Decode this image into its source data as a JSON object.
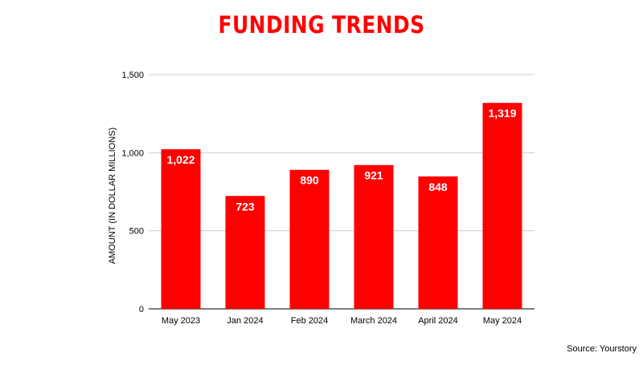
{
  "chart_data": {
    "type": "bar",
    "title": "FUNDING TRENDS",
    "ylabel": "AMOUNT (IN DOLLAR MILLIONS)",
    "xlabel": "",
    "categories": [
      "May 2023",
      "Jan 2024",
      "Feb 2024",
      "March 2024",
      "April 2024",
      "May 2024"
    ],
    "values": [
      1022,
      723,
      890,
      921,
      848,
      1319
    ],
    "data_labels": [
      "1,022",
      "723",
      "890",
      "921",
      "848",
      "1,319"
    ],
    "yticks": [
      0,
      500,
      1000,
      1500
    ],
    "ytick_labels": [
      "0",
      "500",
      "1,000",
      "1,500"
    ],
    "ylim": [
      0,
      1500
    ],
    "grid": true,
    "legend": "none"
  },
  "colors": {
    "bar": "#ff0000",
    "title": "#ff0000",
    "label": "#ffffff",
    "grid": "#cccccc",
    "axis": "#333333"
  },
  "source": "Source: Yourstory"
}
